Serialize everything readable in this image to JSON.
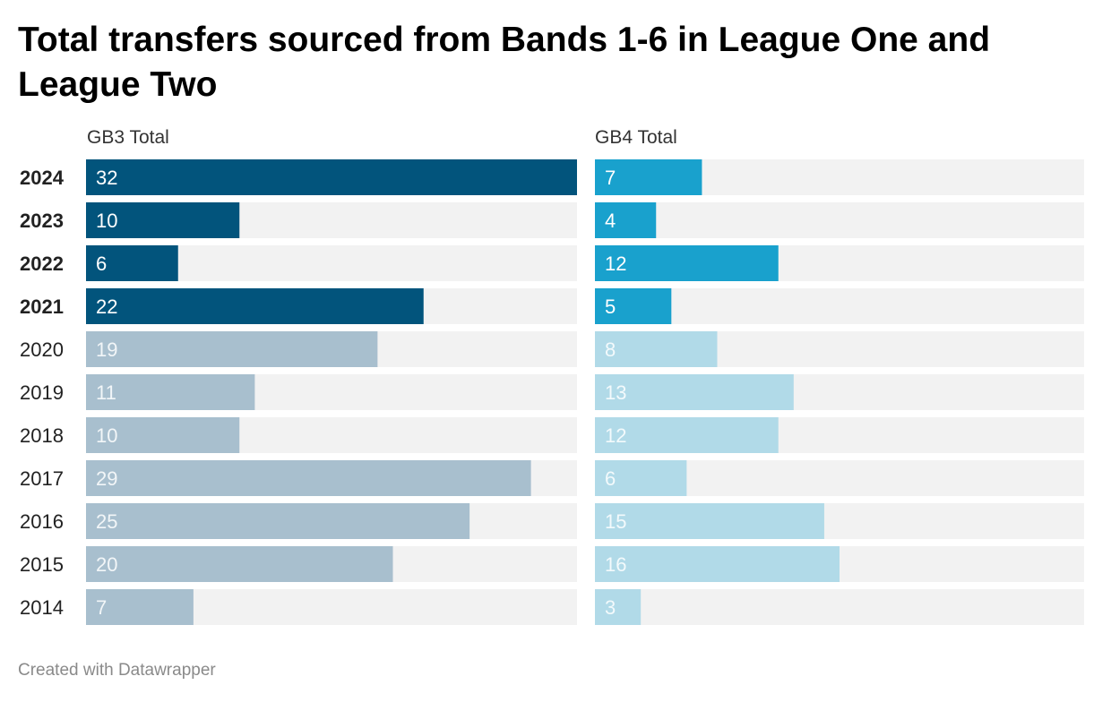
{
  "title": "Total transfers sourced from Bands 1-6 in League One and League Two",
  "footer": "Created with Datawrapper",
  "colors": {
    "gb3_highlight": "#02547c",
    "gb3_muted": "#a8bfce",
    "gb4_highlight": "#19a1cd",
    "gb4_muted": "#b1dae8",
    "track": "#f2f2f2"
  },
  "chart_data": {
    "type": "bar",
    "orientation": "horizontal",
    "categories": [
      "2024",
      "2023",
      "2022",
      "2021",
      "2020",
      "2019",
      "2018",
      "2017",
      "2016",
      "2015",
      "2014"
    ],
    "highlighted_categories": [
      "2024",
      "2023",
      "2022",
      "2021"
    ],
    "xlim": [
      0,
      32
    ],
    "series": [
      {
        "name": "GB3 Total",
        "values": [
          32,
          10,
          6,
          22,
          19,
          11,
          10,
          29,
          25,
          20,
          7
        ]
      },
      {
        "name": "GB4 Total",
        "values": [
          7,
          4,
          12,
          5,
          8,
          13,
          12,
          6,
          15,
          16,
          3
        ]
      }
    ]
  }
}
